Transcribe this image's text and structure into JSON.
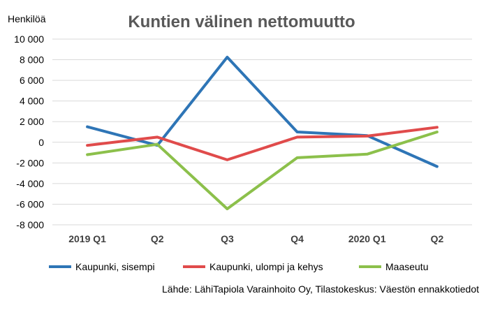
{
  "chart_data": {
    "type": "line",
    "title": "Kuntien välinen nettomuutto",
    "ylabel": "Henkilöä",
    "xlabel": "",
    "categories": [
      "2019 Q1",
      "Q2",
      "Q3",
      "Q4",
      "2020 Q1",
      "Q2"
    ],
    "ylim": [
      -8000,
      10000
    ],
    "yticks": [
      10000,
      8000,
      6000,
      4000,
      2000,
      0,
      -2000,
      -4000,
      -6000,
      -8000
    ],
    "ytick_labels": [
      "10 000",
      "8 000",
      "6 000",
      "4 000",
      "2 000",
      "0",
      "-2 000",
      "-4 000",
      "-6 000",
      "-8 000"
    ],
    "grid": true,
    "legend_position": "bottom",
    "series": [
      {
        "name": "Kaupunki, sisempi",
        "color": "#2e75b6",
        "values": [
          1500,
          -300,
          8250,
          1000,
          650,
          -2350
        ]
      },
      {
        "name": "Kaupunki, ulompi ja kehys",
        "color": "#e04b4b",
        "values": [
          -300,
          500,
          -1700,
          500,
          600,
          1450
        ]
      },
      {
        "name": "Maaseutu",
        "color": "#8cc04b",
        "values": [
          -1200,
          -200,
          -6450,
          -1500,
          -1150,
          1000
        ]
      }
    ],
    "source": "Lähde: LähiTapiola Varainhoito Oy, Tilastokeskus: Väestön ennakkotiedot"
  }
}
